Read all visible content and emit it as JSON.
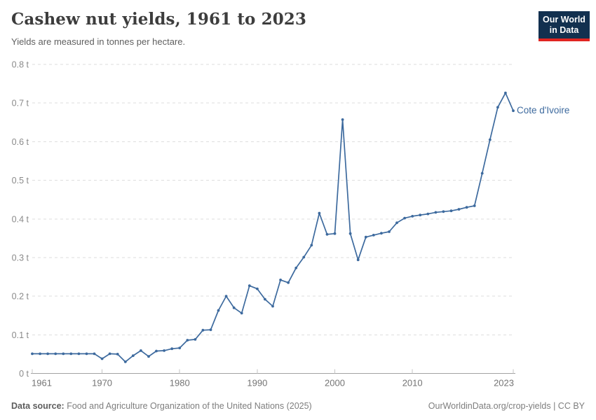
{
  "header": {
    "title": "Cashew nut yields, 1961 to 2023",
    "subtitle": "Yields are measured in tonnes per hectare.",
    "logo": {
      "line1": "Our World",
      "line2": "in Data"
    }
  },
  "colors": {
    "line": "#3d6a9e",
    "logo-bg": "#12304f",
    "logo-red": "#e02521",
    "grid": "#dedede",
    "axis": "#a3a3a3",
    "tick": "#c4c4c4",
    "y-label": "#8a8a8a",
    "x-label": "#747474"
  },
  "chart_data": {
    "type": "line",
    "title": "Cashew nut yields, 1961 to 2023",
    "ylabel": "tonnes per hectare",
    "unit_suffix": " t",
    "ylim": [
      0,
      0.8
    ],
    "xlim": [
      1961,
      2023
    ],
    "grid": "horizontal-dashed",
    "legend_position": "end-of-line label",
    "y_ticks": [
      {
        "label": "0 t",
        "value": 0
      },
      {
        "label": "0.1 t",
        "value": 0.1
      },
      {
        "label": "0.2 t",
        "value": 0.2
      },
      {
        "label": "0.3 t",
        "value": 0.3
      },
      {
        "label": "0.4 t",
        "value": 0.4
      },
      {
        "label": "0.5 t",
        "value": 0.5
      },
      {
        "label": "0.6 t",
        "value": 0.6
      },
      {
        "label": "0.7 t",
        "value": 0.7
      },
      {
        "label": "0.8 t",
        "value": 0.8
      }
    ],
    "x_ticks": [
      1961,
      1970,
      1980,
      1990,
      2000,
      2010,
      2023
    ],
    "series": [
      {
        "name": "Cote d'Ivoire",
        "color": "#3d6a9e",
        "x": [
          1961,
          1962,
          1963,
          1964,
          1965,
          1966,
          1967,
          1968,
          1969,
          1970,
          1971,
          1972,
          1973,
          1974,
          1975,
          1976,
          1977,
          1978,
          1979,
          1980,
          1981,
          1982,
          1983,
          1984,
          1985,
          1986,
          1987,
          1988,
          1989,
          1990,
          1991,
          1992,
          1993,
          1994,
          1995,
          1996,
          1997,
          1998,
          1999,
          2000,
          2001,
          2002,
          2003,
          2004,
          2005,
          2006,
          2007,
          2008,
          2009,
          2010,
          2011,
          2012,
          2013,
          2014,
          2015,
          2016,
          2017,
          2018,
          2019,
          2020,
          2021,
          2022,
          2023
        ],
        "values": [
          0.051,
          0.051,
          0.051,
          0.051,
          0.051,
          0.051,
          0.051,
          0.051,
          0.051,
          0.038,
          0.051,
          0.05,
          0.03,
          0.046,
          0.059,
          0.044,
          0.058,
          0.059,
          0.064,
          0.066,
          0.086,
          0.088,
          0.112,
          0.113,
          0.163,
          0.2,
          0.17,
          0.156,
          0.227,
          0.219,
          0.192,
          0.174,
          0.242,
          0.235,
          0.273,
          0.301,
          0.332,
          0.415,
          0.36,
          0.362,
          0.657,
          0.362,
          0.294,
          0.353,
          0.358,
          0.363,
          0.367,
          0.39,
          0.402,
          0.407,
          0.41,
          0.413,
          0.417,
          0.419,
          0.421,
          0.425,
          0.43,
          0.434,
          0.518,
          0.605,
          0.689,
          0.726,
          0.68
        ]
      }
    ]
  },
  "footer": {
    "source_label": "Data source:",
    "source_text": " Food and Agriculture Organization of the United Nations (2025)",
    "credit": "OurWorldinData.org/crop-yields | CC BY"
  }
}
